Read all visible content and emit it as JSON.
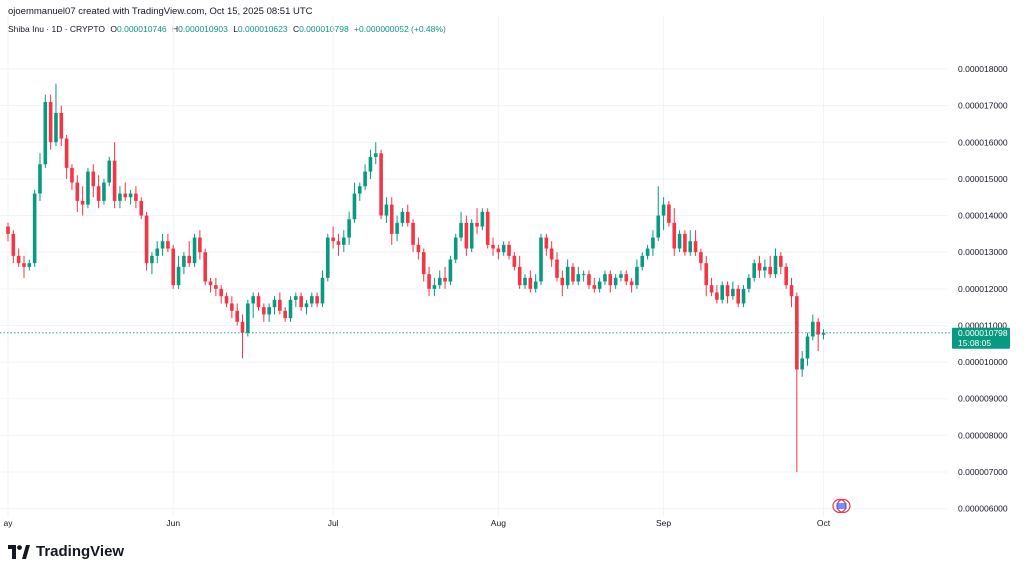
{
  "header": {
    "credit": "ojoemmanuel07 created with TradingView.com, Oct 15, 2025 08:51 UTC",
    "symbol": "Shiba Inu · 1D · CRYPTO",
    "o_label": "O",
    "o_value": "0.000010746",
    "h_label": "H",
    "h_value": "0.000010903",
    "l_label": "L",
    "l_value": "0.000010623",
    "c_label": "C",
    "c_value": "0.000010798",
    "change": "+0.000000052 (+0.48%)"
  },
  "price_tag": {
    "value": "0.000010798",
    "countdown": "15:08:05"
  },
  "brand": {
    "name": "TradingView"
  },
  "colors": {
    "up": "#089981",
    "down": "#f23645",
    "grid": "#f0f3fa",
    "axis_text": "#131722",
    "price_line": "#089981"
  },
  "chart_data": {
    "type": "candlestick",
    "y_ticks": [
      "0.000018000",
      "0.000017000",
      "0.000016000",
      "0.000015000",
      "0.000014000",
      "0.000013000",
      "0.000012000",
      "0.000011000",
      "0.000010000",
      "0.000009000",
      "0.000008000",
      "0.000007000",
      "0.000006000"
    ],
    "y_range": [
      5.8e-06,
      1.89e-05
    ],
    "x_ticks": [
      {
        "label": "ay",
        "index": 0
      },
      {
        "label": "Jun",
        "index": 31
      },
      {
        "label": "Jul",
        "index": 61
      },
      {
        "label": "Aug",
        "index": 92
      },
      {
        "label": "Sep",
        "index": 123
      },
      {
        "label": "Oct",
        "index": 153
      }
    ],
    "candles_e6": [
      [
        13.7,
        13.8,
        13.3,
        13.5
      ],
      [
        13.5,
        13.6,
        12.7,
        12.9
      ],
      [
        12.9,
        13.1,
        12.6,
        12.7
      ],
      [
        12.7,
        12.9,
        12.3,
        12.6
      ],
      [
        12.6,
        12.8,
        12.5,
        12.7
      ],
      [
        12.7,
        14.7,
        12.6,
        14.6
      ],
      [
        14.6,
        15.7,
        14.4,
        15.4
      ],
      [
        15.4,
        17.3,
        15.3,
        17.1
      ],
      [
        17.1,
        17.3,
        15.8,
        16.0
      ],
      [
        16.0,
        17.6,
        15.9,
        16.8
      ],
      [
        16.8,
        17.0,
        15.9,
        16.1
      ],
      [
        16.1,
        16.2,
        15.0,
        15.3
      ],
      [
        15.3,
        15.4,
        14.7,
        14.9
      ],
      [
        14.9,
        15.1,
        14.1,
        14.4
      ],
      [
        14.4,
        14.8,
        14.0,
        14.3
      ],
      [
        14.3,
        15.3,
        14.2,
        15.2
      ],
      [
        15.2,
        15.4,
        14.5,
        14.8
      ],
      [
        14.8,
        15.1,
        14.2,
        14.4
      ],
      [
        14.4,
        15.0,
        14.3,
        14.9
      ],
      [
        14.9,
        15.6,
        14.8,
        15.5
      ],
      [
        15.5,
        16.0,
        14.2,
        14.4
      ],
      [
        14.4,
        14.8,
        14.2,
        14.6
      ],
      [
        14.6,
        14.9,
        14.4,
        14.5
      ],
      [
        14.5,
        14.7,
        14.3,
        14.6
      ],
      [
        14.6,
        14.8,
        14.2,
        14.4
      ],
      [
        14.4,
        14.5,
        13.9,
        14.0
      ],
      [
        14.0,
        14.1,
        12.5,
        12.7
      ],
      [
        12.7,
        13.0,
        12.4,
        12.9
      ],
      [
        12.9,
        13.3,
        12.7,
        13.1
      ],
      [
        13.1,
        13.5,
        12.9,
        13.3
      ],
      [
        13.3,
        13.5,
        13.0,
        13.1
      ],
      [
        13.1,
        13.2,
        12.0,
        12.1
      ],
      [
        12.1,
        12.9,
        12.0,
        12.6
      ],
      [
        12.6,
        13.0,
        12.4,
        12.9
      ],
      [
        12.9,
        13.3,
        12.6,
        12.7
      ],
      [
        12.7,
        13.5,
        12.6,
        13.4
      ],
      [
        13.4,
        13.6,
        12.8,
        13.0
      ],
      [
        13.0,
        13.1,
        12.1,
        12.2
      ],
      [
        12.2,
        12.3,
        11.9,
        12.1
      ],
      [
        12.1,
        12.3,
        11.8,
        12.0
      ],
      [
        12.0,
        12.1,
        11.6,
        11.8
      ],
      [
        11.8,
        11.9,
        11.5,
        11.6
      ],
      [
        11.6,
        11.8,
        11.2,
        11.4
      ],
      [
        11.4,
        11.6,
        11.0,
        11.1
      ],
      [
        11.1,
        11.3,
        10.1,
        10.8
      ],
      [
        10.8,
        11.7,
        10.7,
        11.6
      ],
      [
        11.6,
        11.9,
        11.2,
        11.8
      ],
      [
        11.8,
        11.9,
        11.4,
        11.5
      ],
      [
        11.5,
        11.6,
        11.1,
        11.3
      ],
      [
        11.3,
        11.6,
        11.1,
        11.5
      ],
      [
        11.5,
        11.8,
        11.3,
        11.7
      ],
      [
        11.7,
        11.9,
        11.3,
        11.4
      ],
      [
        11.4,
        11.5,
        11.1,
        11.2
      ],
      [
        11.2,
        11.8,
        11.1,
        11.7
      ],
      [
        11.7,
        11.9,
        11.5,
        11.8
      ],
      [
        11.8,
        11.9,
        11.4,
        11.5
      ],
      [
        11.5,
        11.7,
        11.3,
        11.6
      ],
      [
        11.6,
        11.9,
        11.5,
        11.8
      ],
      [
        11.8,
        11.9,
        11.5,
        11.6
      ],
      [
        11.6,
        12.5,
        11.5,
        12.3
      ],
      [
        12.3,
        13.5,
        12.2,
        13.4
      ],
      [
        13.4,
        13.7,
        13.1,
        13.3
      ],
      [
        13.3,
        13.5,
        12.9,
        13.2
      ],
      [
        13.2,
        13.6,
        13.0,
        13.4
      ],
      [
        13.4,
        14.1,
        13.2,
        13.9
      ],
      [
        13.9,
        14.9,
        13.8,
        14.6
      ],
      [
        14.6,
        14.9,
        14.4,
        14.8
      ],
      [
        14.8,
        15.4,
        14.7,
        15.2
      ],
      [
        15.2,
        15.8,
        15.0,
        15.6
      ],
      [
        15.6,
        16.0,
        15.4,
        15.7
      ],
      [
        15.7,
        15.8,
        13.9,
        14.0
      ],
      [
        14.0,
        14.5,
        13.8,
        14.3
      ],
      [
        14.3,
        14.5,
        13.2,
        13.5
      ],
      [
        13.5,
        14.0,
        13.3,
        13.8
      ],
      [
        13.8,
        14.2,
        13.7,
        14.1
      ],
      [
        14.1,
        14.3,
        13.7,
        13.8
      ],
      [
        13.8,
        13.9,
        13.0,
        13.2
      ],
      [
        13.2,
        13.4,
        12.8,
        13.0
      ],
      [
        13.0,
        13.1,
        12.2,
        12.4
      ],
      [
        12.4,
        12.6,
        11.8,
        12.0
      ],
      [
        12.0,
        12.3,
        11.8,
        12.1
      ],
      [
        12.1,
        12.5,
        12.0,
        12.3
      ],
      [
        12.3,
        12.6,
        12.0,
        12.2
      ],
      [
        12.2,
        12.9,
        12.1,
        12.8
      ],
      [
        12.8,
        13.5,
        12.7,
        13.4
      ],
      [
        13.4,
        14.1,
        13.3,
        13.8
      ],
      [
        13.8,
        14.0,
        12.9,
        13.1
      ],
      [
        13.1,
        13.9,
        13.0,
        13.8
      ],
      [
        13.8,
        14.2,
        13.5,
        13.7
      ],
      [
        13.7,
        14.2,
        13.6,
        14.1
      ],
      [
        14.1,
        14.2,
        13.1,
        13.2
      ],
      [
        13.2,
        13.4,
        12.9,
        13.1
      ],
      [
        13.1,
        13.2,
        12.8,
        13.0
      ],
      [
        13.0,
        13.3,
        12.9,
        13.2
      ],
      [
        13.2,
        13.3,
        12.8,
        12.9
      ],
      [
        12.9,
        13.0,
        12.5,
        12.6
      ],
      [
        12.6,
        12.9,
        12.0,
        12.1
      ],
      [
        12.1,
        12.4,
        12.0,
        12.3
      ],
      [
        12.3,
        12.5,
        11.9,
        12.0
      ],
      [
        12.0,
        12.4,
        11.9,
        12.2
      ],
      [
        12.2,
        13.5,
        12.1,
        13.4
      ],
      [
        13.4,
        13.5,
        12.9,
        13.1
      ],
      [
        13.1,
        13.3,
        12.6,
        12.8
      ],
      [
        12.8,
        13.0,
        12.2,
        12.3
      ],
      [
        12.3,
        12.5,
        11.8,
        12.1
      ],
      [
        12.1,
        12.8,
        12.0,
        12.6
      ],
      [
        12.6,
        12.7,
        12.1,
        12.2
      ],
      [
        12.2,
        12.6,
        12.1,
        12.4
      ],
      [
        12.4,
        12.5,
        12.2,
        12.4
      ],
      [
        12.4,
        12.5,
        12.0,
        12.1
      ],
      [
        12.1,
        12.3,
        11.9,
        12.0
      ],
      [
        12.0,
        12.3,
        11.9,
        12.2
      ],
      [
        12.2,
        12.5,
        12.1,
        12.4
      ],
      [
        12.4,
        12.5,
        11.9,
        12.1
      ],
      [
        12.1,
        12.4,
        12.0,
        12.3
      ],
      [
        12.3,
        12.5,
        12.2,
        12.4
      ],
      [
        12.4,
        12.5,
        12.1,
        12.2
      ],
      [
        12.2,
        12.3,
        11.9,
        12.1
      ],
      [
        12.1,
        12.8,
        12.0,
        12.6
      ],
      [
        12.6,
        13.0,
        12.5,
        12.9
      ],
      [
        12.9,
        13.2,
        12.8,
        13.1
      ],
      [
        13.1,
        13.6,
        12.9,
        13.4
      ],
      [
        13.4,
        14.8,
        13.3,
        14.0
      ],
      [
        14.0,
        14.5,
        13.6,
        14.3
      ],
      [
        14.3,
        14.4,
        13.7,
        13.8
      ],
      [
        13.8,
        14.2,
        12.9,
        13.1
      ],
      [
        13.1,
        13.6,
        13.0,
        13.5
      ],
      [
        13.5,
        13.6,
        12.9,
        13.0
      ],
      [
        13.0,
        13.6,
        12.9,
        13.3
      ],
      [
        13.3,
        13.6,
        12.9,
        13.0
      ],
      [
        13.0,
        13.1,
        12.5,
        12.7
      ],
      [
        12.7,
        12.9,
        11.8,
        12.1
      ],
      [
        12.1,
        12.3,
        11.8,
        11.9
      ],
      [
        11.9,
        12.1,
        11.6,
        11.7
      ],
      [
        11.7,
        12.2,
        11.6,
        12.1
      ],
      [
        12.1,
        12.2,
        11.6,
        11.8
      ],
      [
        11.8,
        12.2,
        11.7,
        12.0
      ],
      [
        12.0,
        12.1,
        11.5,
        11.6
      ],
      [
        11.6,
        12.1,
        11.5,
        12.0
      ],
      [
        12.0,
        12.4,
        11.9,
        12.3
      ],
      [
        12.3,
        12.8,
        12.2,
        12.7
      ],
      [
        12.7,
        12.9,
        12.3,
        12.5
      ],
      [
        12.5,
        12.8,
        12.3,
        12.6
      ],
      [
        12.6,
        12.9,
        12.3,
        12.4
      ],
      [
        12.4,
        13.1,
        12.3,
        12.9
      ],
      [
        12.9,
        13.0,
        12.4,
        12.6
      ],
      [
        12.6,
        12.7,
        12.0,
        12.1
      ],
      [
        12.1,
        12.3,
        11.5,
        11.8
      ],
      [
        11.8,
        11.9,
        7.0,
        9.8
      ],
      [
        9.8,
        10.3,
        9.6,
        10.1
      ],
      [
        10.1,
        10.8,
        9.9,
        10.7
      ],
      [
        10.7,
        11.3,
        10.6,
        11.1
      ],
      [
        11.1,
        11.2,
        10.3,
        10.75
      ],
      [
        10.75,
        10.9,
        10.62,
        10.8
      ]
    ]
  }
}
